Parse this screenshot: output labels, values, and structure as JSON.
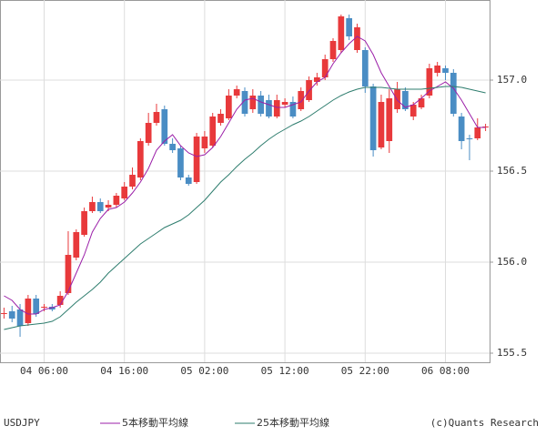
{
  "chart_data": {
    "type": "candlestick",
    "symbol": "USDJPY",
    "copyright": "(c)Quants Research",
    "categories": [
      null,
      null,
      null,
      null,
      null,
      "04 06:00",
      null,
      null,
      null,
      null,
      null,
      null,
      null,
      null,
      null,
      "04 16:00",
      null,
      null,
      null,
      null,
      null,
      null,
      null,
      null,
      null,
      "05 02:00",
      null,
      null,
      null,
      null,
      null,
      null,
      null,
      null,
      null,
      "05 12:00",
      null,
      null,
      null,
      null,
      null,
      null,
      null,
      null,
      null,
      "05 22:00",
      null,
      null,
      null,
      null,
      null,
      null,
      null,
      null,
      null,
      "06 08:00",
      null,
      null,
      null,
      null,
      null
    ],
    "open": [
      155.715,
      155.73,
      155.74,
      155.665,
      155.8,
      155.75,
      155.755,
      155.765,
      155.83,
      156.025,
      156.15,
      156.28,
      156.33,
      156.3,
      156.315,
      156.35,
      156.415,
      156.465,
      156.655,
      156.765,
      156.84,
      156.65,
      156.625,
      156.465,
      156.44,
      156.625,
      156.64,
      156.765,
      156.79,
      156.915,
      156.94,
      156.84,
      156.915,
      156.89,
      156.8,
      156.865,
      156.88,
      156.84,
      156.89,
      156.99,
      157.015,
      157.115,
      157.165,
      157.34,
      157.165,
      157.165,
      156.965,
      156.63,
      156.665,
      156.84,
      156.94,
      156.8,
      156.85,
      156.915,
      157.04,
      157.065,
      157.04,
      156.8,
      156.68,
      156.68,
      156.74
    ],
    "high": [
      155.75,
      155.76,
      155.77,
      155.82,
      155.82,
      155.77,
      155.77,
      155.84,
      156.17,
      156.18,
      156.3,
      156.36,
      156.35,
      156.34,
      156.38,
      156.44,
      156.52,
      156.68,
      156.82,
      156.87,
      156.86,
      156.68,
      156.64,
      156.48,
      156.71,
      156.72,
      156.82,
      156.84,
      156.95,
      156.97,
      156.96,
      156.95,
      156.94,
      156.92,
      156.92,
      156.9,
      156.91,
      156.96,
      157.02,
      157.04,
      157.14,
      157.23,
      157.36,
      157.36,
      157.31,
      157.18,
      156.98,
      156.92,
      156.95,
      156.99,
      156.96,
      156.88,
      156.92,
      157.09,
      157.1,
      157.08,
      157.06,
      156.82,
      156.7,
      156.79,
      156.76
    ],
    "low": [
      155.69,
      155.67,
      155.59,
      155.65,
      155.7,
      155.73,
      155.73,
      155.75,
      155.82,
      156.01,
      156.14,
      156.27,
      156.27,
      156.28,
      156.3,
      156.34,
      156.4,
      156.45,
      156.64,
      156.75,
      156.64,
      156.6,
      156.45,
      156.42,
      156.43,
      156.6,
      156.63,
      156.75,
      156.78,
      156.9,
      156.8,
      156.82,
      156.8,
      156.79,
      156.79,
      156.85,
      156.79,
      156.83,
      156.88,
      156.97,
      157.0,
      157.1,
      157.15,
      157.22,
      157.15,
      156.93,
      156.58,
      156.62,
      156.6,
      156.82,
      156.83,
      156.78,
      156.84,
      156.9,
      157.02,
      157.0,
      156.8,
      156.62,
      156.56,
      156.67,
      156.72
    ],
    "close": [
      155.72,
      155.69,
      155.65,
      155.8,
      155.715,
      155.755,
      155.74,
      155.815,
      156.04,
      156.165,
      156.28,
      156.33,
      156.28,
      156.315,
      156.365,
      156.415,
      156.48,
      156.665,
      156.765,
      156.825,
      156.65,
      156.615,
      156.465,
      156.43,
      156.69,
      156.69,
      156.8,
      156.815,
      156.915,
      156.95,
      156.815,
      156.915,
      156.815,
      156.8,
      156.89,
      156.88,
      156.8,
      156.94,
      157.0,
      157.015,
      157.115,
      157.215,
      157.35,
      157.24,
      157.29,
      156.965,
      156.615,
      156.88,
      156.9,
      156.95,
      156.84,
      156.865,
      156.9,
      157.065,
      157.08,
      157.04,
      156.815,
      156.665,
      156.675,
      156.74,
      156.745
    ],
    "up_color": "#e8393b",
    "down_color": "#4a8dc4",
    "series": [
      {
        "name": "5本移動平均線",
        "color": "#9b1fa8",
        "values": [
          155.815,
          155.79,
          155.74,
          155.715,
          155.715,
          155.74,
          155.75,
          155.765,
          155.84,
          155.94,
          156.04,
          156.165,
          156.24,
          156.29,
          156.3,
          156.33,
          156.38,
          156.44,
          156.515,
          156.615,
          156.665,
          156.7,
          156.64,
          156.6,
          156.58,
          156.59,
          156.63,
          156.69,
          156.765,
          156.84,
          156.89,
          156.9,
          156.88,
          156.865,
          156.85,
          156.85,
          156.865,
          156.88,
          156.94,
          156.99,
          157.015,
          157.09,
          157.15,
          157.2,
          157.24,
          157.215,
          157.14,
          157.04,
          156.965,
          156.89,
          156.85,
          156.865,
          156.9,
          156.94,
          156.965,
          156.99,
          156.955,
          156.89,
          156.815,
          156.74,
          156.74
        ]
      },
      {
        "name": "25本移動平均線",
        "color": "#2e7d6e",
        "values": [
          155.63,
          155.64,
          155.65,
          155.655,
          155.66,
          155.665,
          155.675,
          155.7,
          155.74,
          155.78,
          155.815,
          155.85,
          155.89,
          155.94,
          155.98,
          156.02,
          156.06,
          156.1,
          156.13,
          156.16,
          156.19,
          156.21,
          156.23,
          156.26,
          156.3,
          156.34,
          156.39,
          156.44,
          156.48,
          156.525,
          156.565,
          156.6,
          156.64,
          156.675,
          156.705,
          156.73,
          156.755,
          156.775,
          156.8,
          156.83,
          156.86,
          156.89,
          156.915,
          156.935,
          156.95,
          156.96,
          156.96,
          156.96,
          156.955,
          156.95,
          156.95,
          156.95,
          156.95,
          156.955,
          156.96,
          156.965,
          156.965,
          156.96,
          156.95,
          156.94,
          156.93
        ]
      }
    ],
    "ylim": [
      155.45,
      157.44
    ],
    "yticks": [
      155.5,
      {
        "value": 156,
        "label": "156.0"
      },
      156.5,
      {
        "value": 157,
        "label": "157.0"
      }
    ],
    "grid": true
  }
}
